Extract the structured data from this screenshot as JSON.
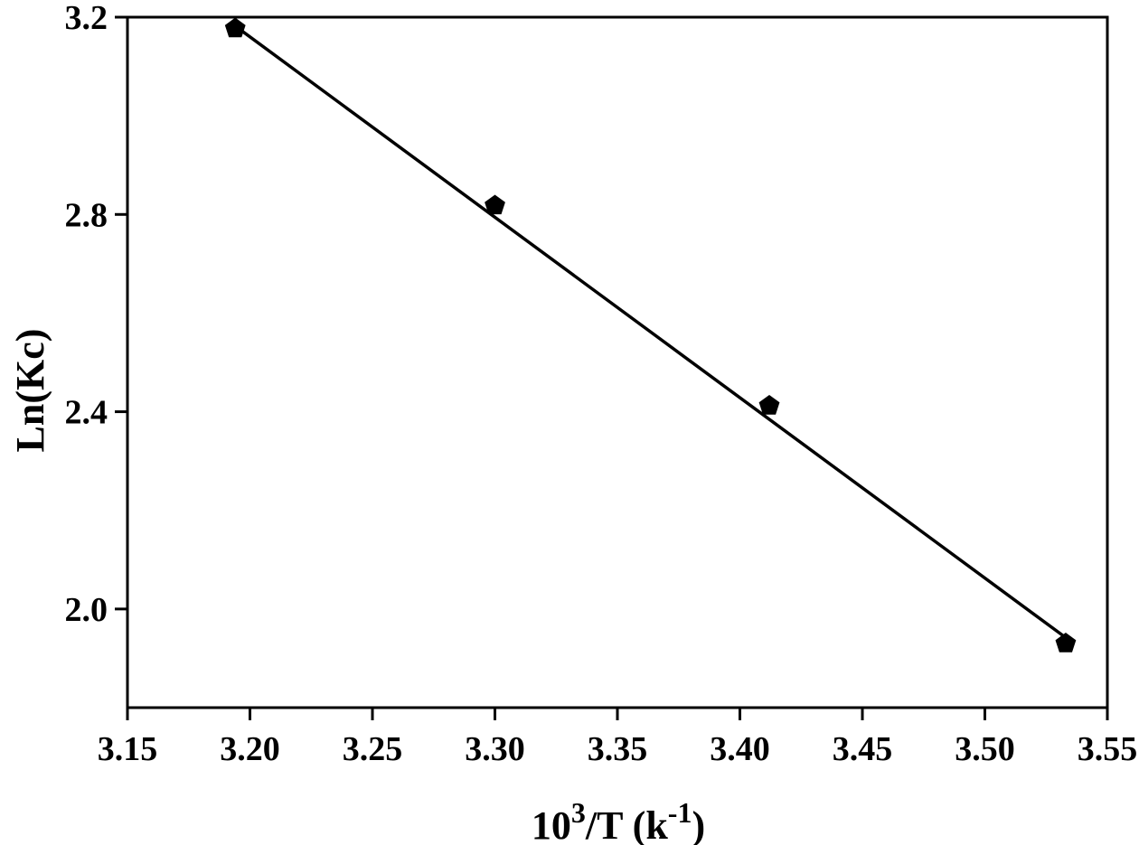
{
  "chart_data": {
    "type": "scatter",
    "xlabel_parts": {
      "base": "10",
      "exp": "3",
      "mid": "/T  (k",
      "unit_exp": "-1",
      "end": ")"
    },
    "ylabel": "Ln(Kc)",
    "xlim": [
      3.15,
      3.55
    ],
    "ylim": [
      1.8,
      3.2
    ],
    "x_ticks": [
      "3.15",
      "3.20",
      "3.25",
      "3.30",
      "3.35",
      "3.40",
      "3.45",
      "3.50",
      "3.55"
    ],
    "y_ticks": [
      "2.0",
      "2.4",
      "2.8",
      "3.2"
    ],
    "points": [
      {
        "x": 3.194,
        "y": 3.177
      },
      {
        "x": 3.3,
        "y": 2.818
      },
      {
        "x": 3.412,
        "y": 2.412
      },
      {
        "x": 3.533,
        "y": 1.93
      }
    ],
    "fit_line": {
      "x": [
        3.194,
        3.533
      ],
      "y": [
        3.182,
        1.942
      ]
    },
    "marker": "pentagon",
    "color": "#000000",
    "grid": false
  }
}
